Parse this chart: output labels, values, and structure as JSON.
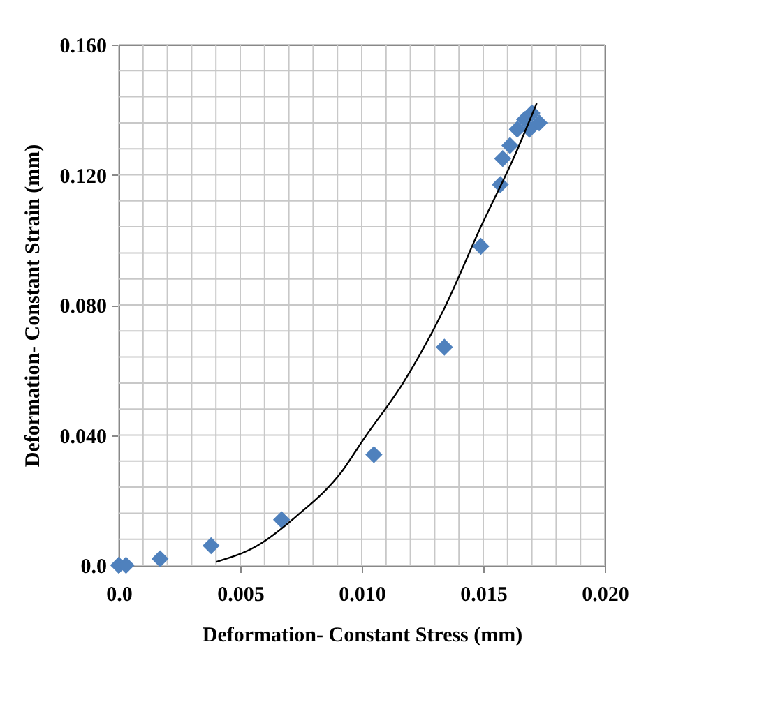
{
  "chart_data": {
    "type": "scatter",
    "xlabel": "Deformation- Constant Stress  (mm)",
    "ylabel": "Deformation- Constant  Strain  (mm)",
    "xlim": [
      0,
      0.02
    ],
    "ylim": [
      0,
      0.16
    ],
    "xticks": [
      {
        "value": 0,
        "label": "0.0"
      },
      {
        "value": 0.001,
        "label": null
      },
      {
        "value": 0.002,
        "label": null
      },
      {
        "value": 0.003,
        "label": null
      },
      {
        "value": 0.004,
        "label": null
      },
      {
        "value": 0.005,
        "label": "0.005"
      },
      {
        "value": 0.006,
        "label": null
      },
      {
        "value": 0.007,
        "label": null
      },
      {
        "value": 0.008,
        "label": null
      },
      {
        "value": 0.009,
        "label": null
      },
      {
        "value": 0.01,
        "label": "0.010"
      },
      {
        "value": 0.011,
        "label": null
      },
      {
        "value": 0.012,
        "label": null
      },
      {
        "value": 0.013,
        "label": null
      },
      {
        "value": 0.014,
        "label": null
      },
      {
        "value": 0.015,
        "label": "0.015"
      },
      {
        "value": 0.016,
        "label": null
      },
      {
        "value": 0.017,
        "label": null
      },
      {
        "value": 0.018,
        "label": null
      },
      {
        "value": 0.019,
        "label": null
      },
      {
        "value": 0.02,
        "label": "0.020"
      }
    ],
    "yticks": [
      {
        "value": 0,
        "label": "0.0"
      },
      {
        "value": 0.008,
        "label": null
      },
      {
        "value": 0.016,
        "label": null
      },
      {
        "value": 0.024,
        "label": null
      },
      {
        "value": 0.032,
        "label": null
      },
      {
        "value": 0.04,
        "label": "0.040"
      },
      {
        "value": 0.048,
        "label": null
      },
      {
        "value": 0.056,
        "label": null
      },
      {
        "value": 0.064,
        "label": null
      },
      {
        "value": 0.072,
        "label": null
      },
      {
        "value": 0.08,
        "label": "0.080"
      },
      {
        "value": 0.088,
        "label": null
      },
      {
        "value": 0.096,
        "label": null
      },
      {
        "value": 0.104,
        "label": null
      },
      {
        "value": 0.112,
        "label": null
      },
      {
        "value": 0.12,
        "label": "0.120"
      },
      {
        "value": 0.128,
        "label": null
      },
      {
        "value": 0.136,
        "label": null
      },
      {
        "value": 0.144,
        "label": null
      },
      {
        "value": 0.152,
        "label": null
      },
      {
        "value": 0.16,
        "label": "0.160"
      }
    ],
    "grid": true,
    "series": [
      {
        "marker": "diamond",
        "color": "#4f81bd",
        "x": [
          0.0,
          0.0003,
          0.0017,
          0.0038,
          0.0067,
          0.0105,
          0.0134,
          0.0149,
          0.0157,
          0.0158,
          0.0161,
          0.0164,
          0.0167,
          0.0169,
          0.017,
          0.0173
        ],
        "values": [
          0.0,
          0.0,
          0.002,
          0.006,
          0.014,
          0.034,
          0.067,
          0.098,
          0.117,
          0.125,
          0.129,
          0.134,
          0.137,
          0.134,
          0.139,
          0.136
        ]
      },
      {
        "type": "line",
        "line_style": "solid",
        "color": "#000000",
        "x": [
          0.004,
          0.0057,
          0.0073,
          0.0092,
          0.0101,
          0.0117,
          0.0134,
          0.0149,
          0.0163,
          0.0172
        ],
        "values": [
          0.001,
          0.006,
          0.015,
          0.029,
          0.039,
          0.056,
          0.079,
          0.104,
          0.126,
          0.142
        ]
      }
    ]
  }
}
